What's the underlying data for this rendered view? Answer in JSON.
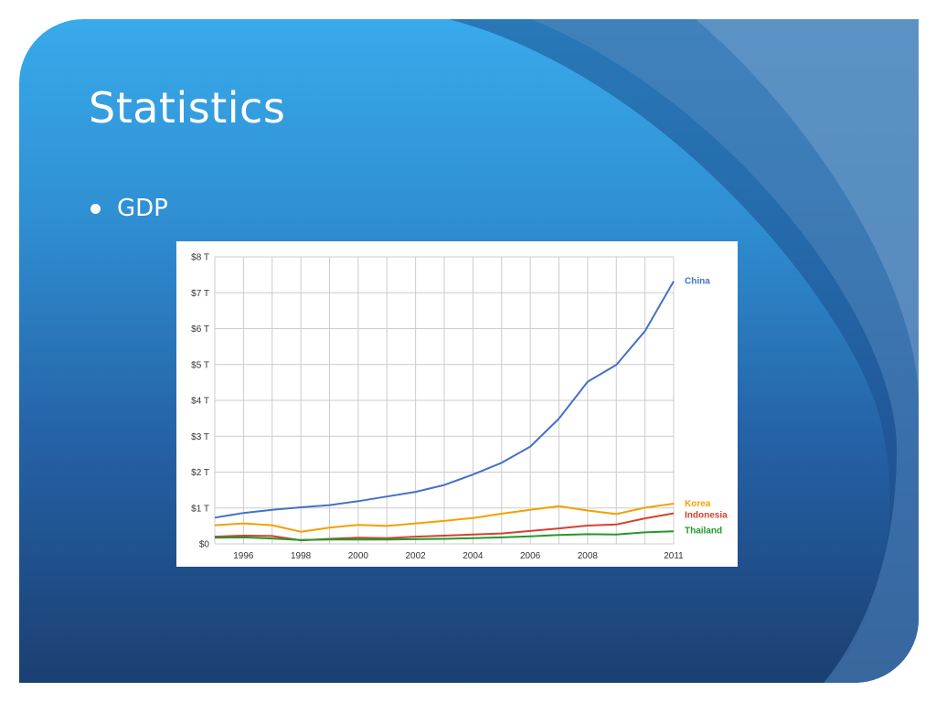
{
  "slide": {
    "title": "Statistics",
    "bullets": [
      "GDP"
    ]
  },
  "colors": {
    "china": "#4472c4",
    "korea": "#f4a000",
    "indonesia": "#d64030",
    "thailand": "#1f9a2c",
    "grid": "#cccccc"
  },
  "chart_data": {
    "type": "line",
    "title": "",
    "xlabel": "",
    "ylabel": "",
    "x_range": [
      1995,
      2011
    ],
    "ylim": [
      0,
      8
    ],
    "grid": true,
    "legend": "right (labels at line ends)",
    "y_ticks": [
      {
        "value": 0,
        "label": "$0"
      },
      {
        "value": 1,
        "label": "$1 T"
      },
      {
        "value": 2,
        "label": "$2 T"
      },
      {
        "value": 3,
        "label": "$3 T"
      },
      {
        "value": 4,
        "label": "$4 T"
      },
      {
        "value": 5,
        "label": "$5 T"
      },
      {
        "value": 6,
        "label": "$6 T"
      },
      {
        "value": 7,
        "label": "$7 T"
      },
      {
        "value": 8,
        "label": "$8 T"
      }
    ],
    "x_ticks": [
      {
        "value": 1996,
        "label": "1996"
      },
      {
        "value": 1998,
        "label": "1998"
      },
      {
        "value": 2000,
        "label": "2000"
      },
      {
        "value": 2002,
        "label": "2002"
      },
      {
        "value": 2004,
        "label": "2004"
      },
      {
        "value": 2006,
        "label": "2006"
      },
      {
        "value": 2008,
        "label": "2008"
      },
      {
        "value": 2011,
        "label": "2011"
      }
    ],
    "x": [
      1995,
      1996,
      1997,
      1998,
      1999,
      2000,
      2001,
      2002,
      2003,
      2004,
      2005,
      2006,
      2007,
      2008,
      2009,
      2010,
      2011
    ],
    "series": [
      {
        "name": "China",
        "color_key": "china",
        "values": [
          0.73,
          0.86,
          0.95,
          1.02,
          1.08,
          1.19,
          1.32,
          1.45,
          1.64,
          1.93,
          2.26,
          2.71,
          3.49,
          4.52,
          4.99,
          5.93,
          7.32
        ]
      },
      {
        "name": "Korea",
        "color_key": "korea",
        "values": [
          0.52,
          0.57,
          0.52,
          0.34,
          0.45,
          0.53,
          0.5,
          0.57,
          0.64,
          0.72,
          0.84,
          0.95,
          1.05,
          0.93,
          0.83,
          1.01,
          1.12
        ]
      },
      {
        "name": "Indonesia",
        "color_key": "indonesia",
        "values": [
          0.2,
          0.23,
          0.22,
          0.1,
          0.14,
          0.17,
          0.16,
          0.2,
          0.23,
          0.26,
          0.29,
          0.36,
          0.43,
          0.51,
          0.54,
          0.71,
          0.85
        ]
      },
      {
        "name": "Thailand",
        "color_key": "thailand",
        "values": [
          0.17,
          0.18,
          0.15,
          0.11,
          0.12,
          0.12,
          0.12,
          0.13,
          0.14,
          0.16,
          0.18,
          0.21,
          0.25,
          0.27,
          0.26,
          0.32,
          0.35
        ]
      }
    ]
  }
}
